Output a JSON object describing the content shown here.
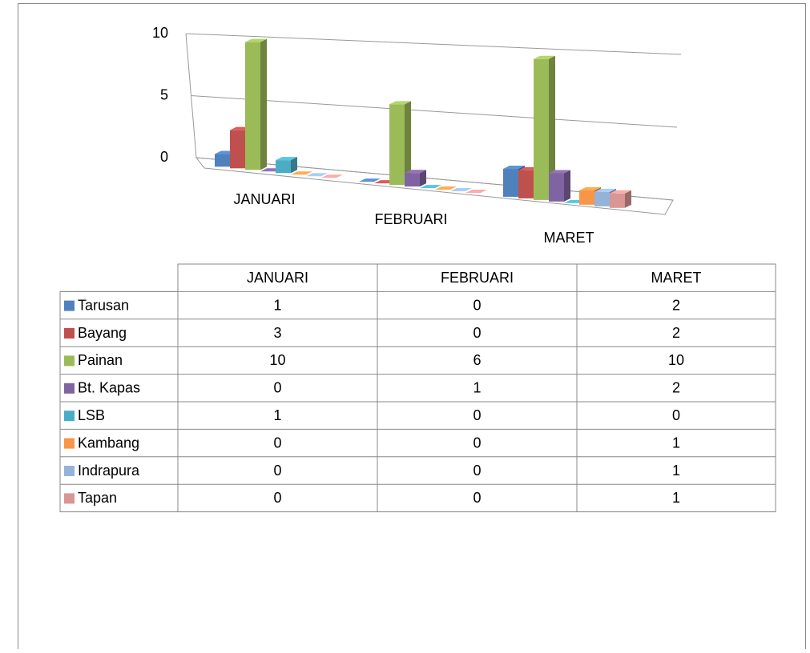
{
  "chart_data": {
    "type": "bar",
    "view": "3d",
    "categories": [
      "JANUARI",
      "FEBRUARI",
      "MARET"
    ],
    "series": [
      {
        "name": "Tarusan",
        "color": "#4f81bd",
        "values": [
          1,
          0,
          2
        ]
      },
      {
        "name": "Bayang",
        "color": "#c0504d",
        "values": [
          3,
          0,
          2
        ]
      },
      {
        "name": "Painan",
        "color": "#9bbb59",
        "values": [
          10,
          6,
          10
        ]
      },
      {
        "name": "Bt. Kapas",
        "color": "#8064a2",
        "values": [
          0,
          1,
          2
        ]
      },
      {
        "name": "LSB",
        "color": "#4bacc6",
        "values": [
          1,
          0,
          0
        ]
      },
      {
        "name": "Kambang",
        "color": "#f79646",
        "values": [
          0,
          0,
          1
        ]
      },
      {
        "name": "Indrapura",
        "color": "#95b3d7",
        "values": [
          0,
          0,
          1
        ]
      },
      {
        "name": "Tapan",
        "color": "#d99694",
        "values": [
          0,
          0,
          1
        ]
      }
    ],
    "ylim": [
      0,
      10
    ],
    "yticks": [
      0,
      5,
      10
    ],
    "grid": true,
    "data_table": true
  }
}
